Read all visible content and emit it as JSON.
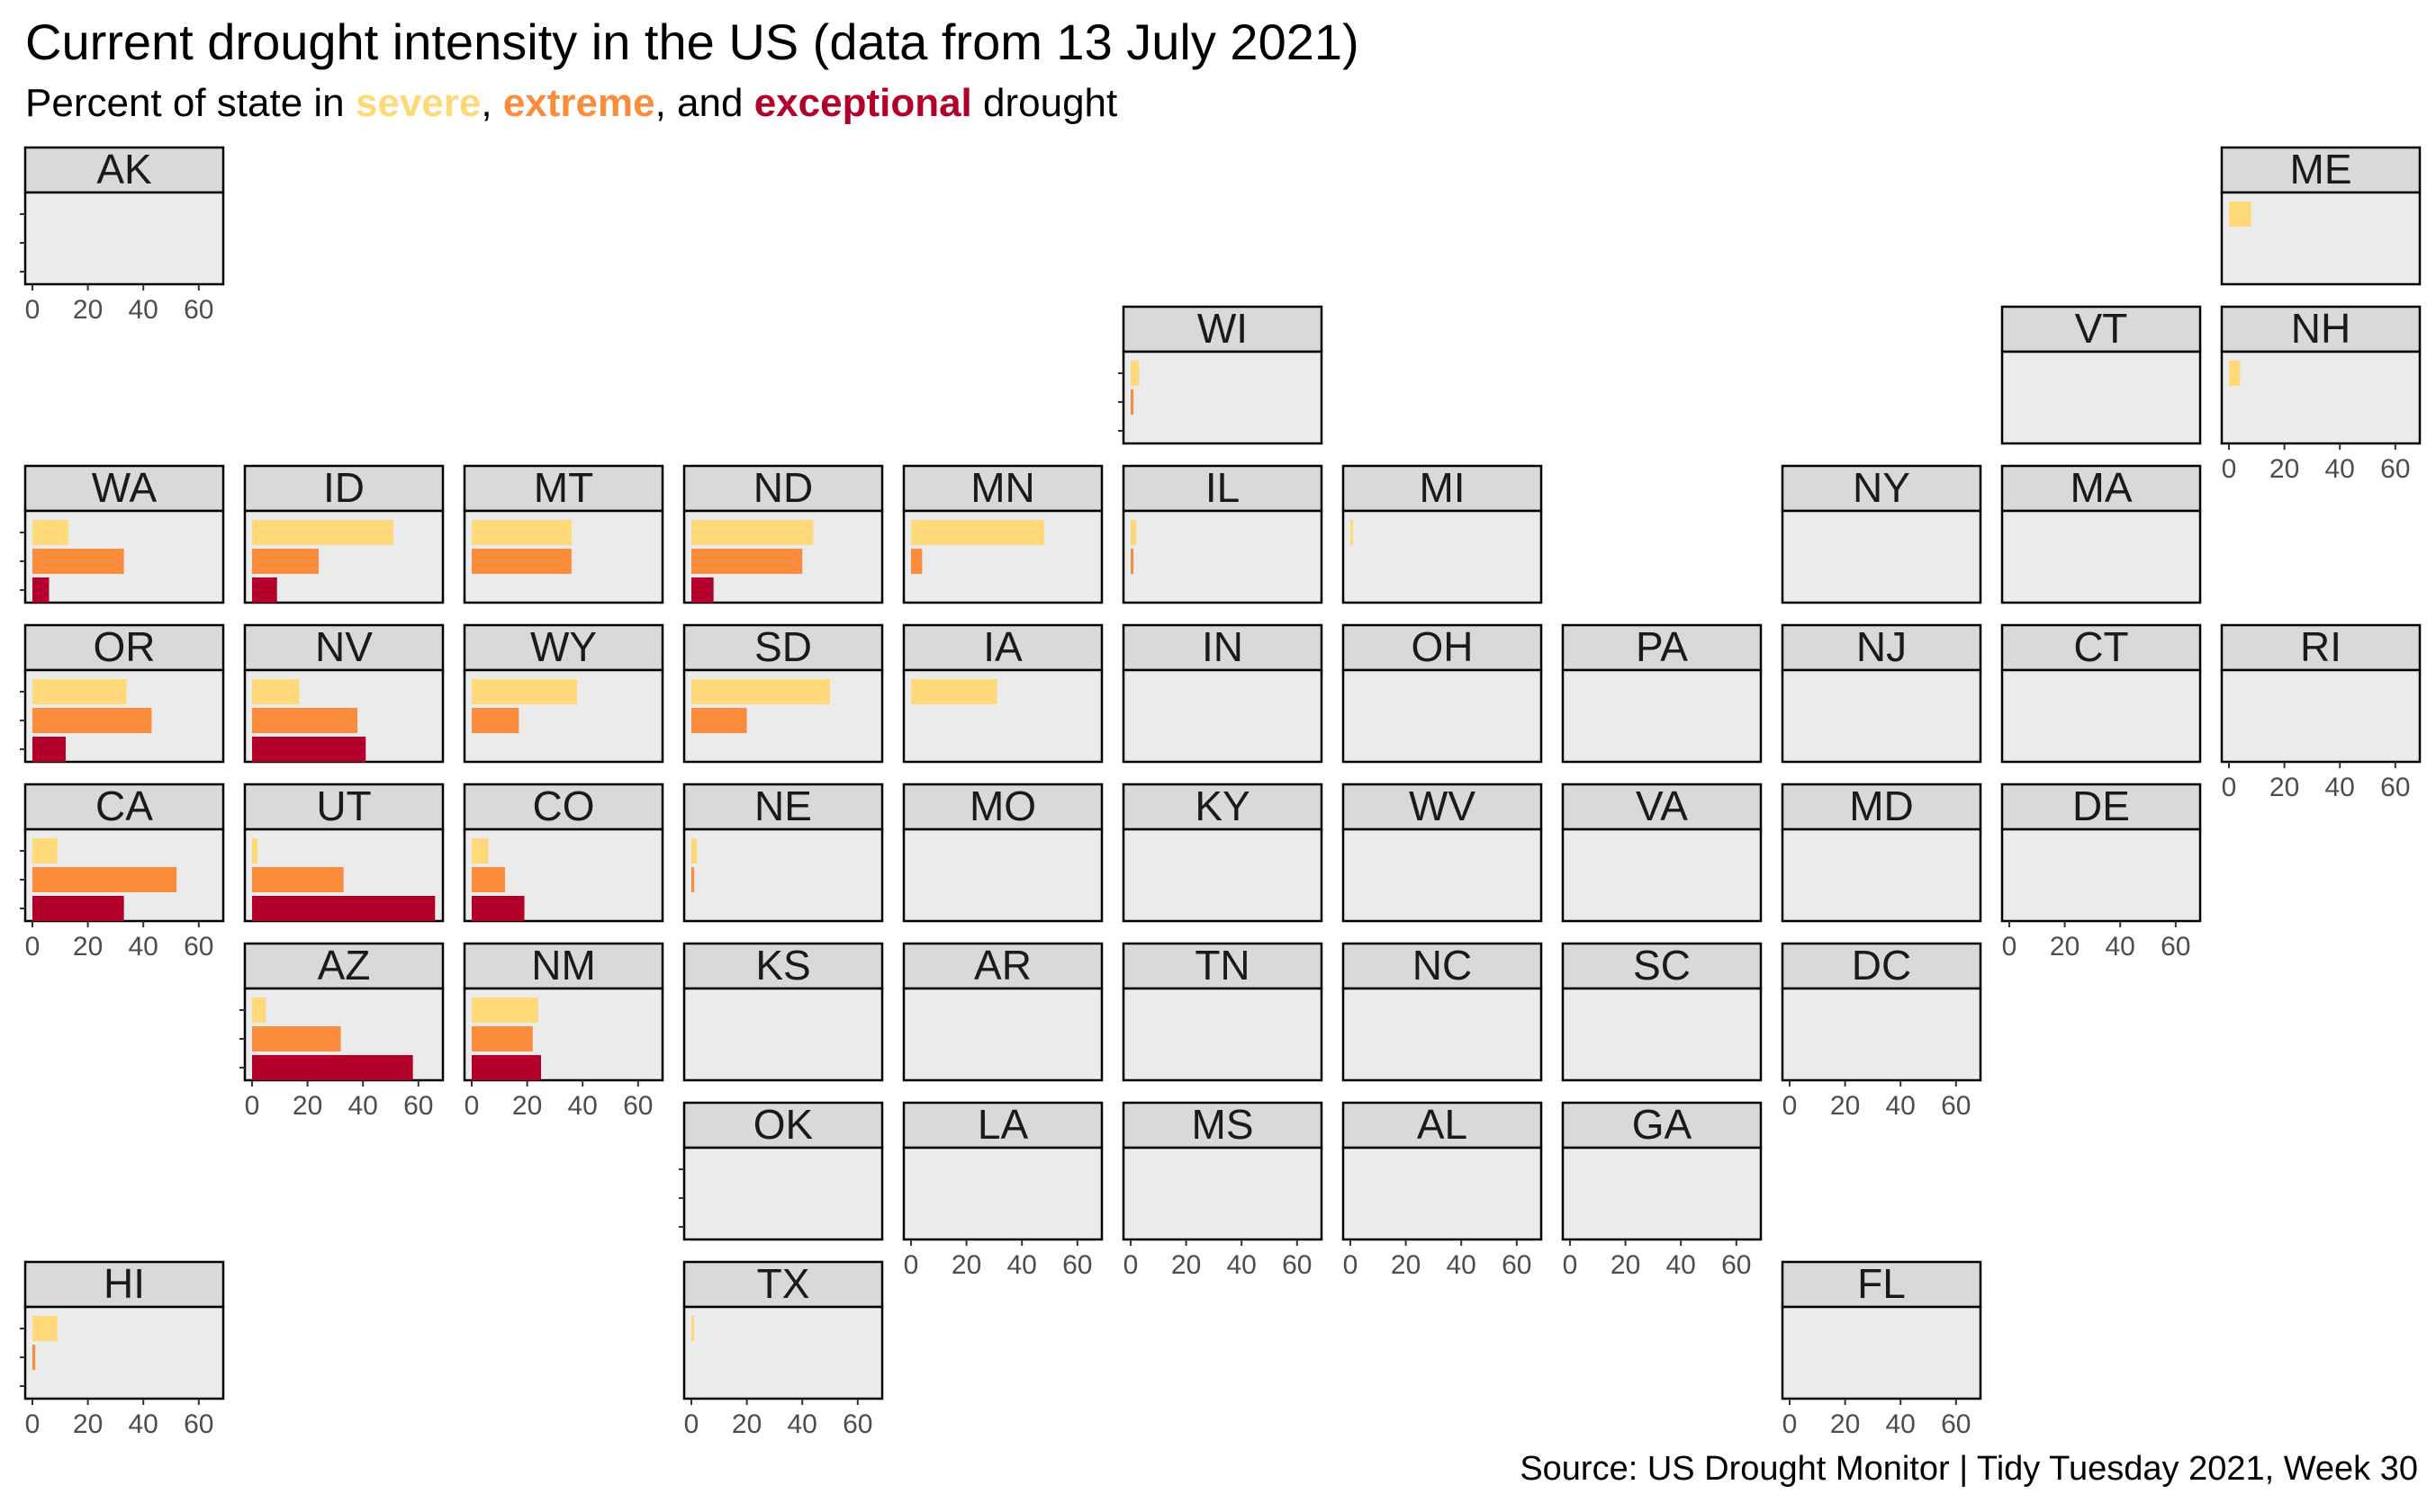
{
  "title": "Current drought intensity in the US (data from 13 July 2021)",
  "subtitle": {
    "prefix": "Percent of state in ",
    "severe": "severe",
    "sep1": ", ",
    "extreme": "extreme",
    "sep2": ", and ",
    "exceptional": "exceptional",
    "suffix": " drought"
  },
  "caption": "Source: US Drought Monitor | Tidy Tuesday 2021, Week 30",
  "colors": {
    "severe": "#FFD87A",
    "extreme": "#FB8C3C",
    "exceptional": "#B2002A",
    "panel": "#EBEBEB",
    "strip": "#D9D9D9"
  },
  "chart_data": {
    "type": "bar",
    "orientation": "horizontal",
    "layout": "geofacet-grid",
    "categories": [
      "severe",
      "extreme",
      "exceptional"
    ],
    "xlim": [
      0,
      70
    ],
    "xticks": [
      0,
      20,
      40,
      60
    ],
    "states": [
      {
        "name": "AK",
        "row": 1,
        "col": 1,
        "values": [
          0,
          0,
          0
        ]
      },
      {
        "name": "ME",
        "row": 1,
        "col": 11,
        "values": [
          8,
          0,
          0
        ]
      },
      {
        "name": "WI",
        "row": 2,
        "col": 6,
        "values": [
          3,
          1,
          0
        ]
      },
      {
        "name": "VT",
        "row": 2,
        "col": 10,
        "values": [
          0,
          0,
          0
        ]
      },
      {
        "name": "NH",
        "row": 2,
        "col": 11,
        "values": [
          4,
          0,
          0
        ]
      },
      {
        "name": "WA",
        "row": 3,
        "col": 1,
        "values": [
          13,
          33,
          6
        ]
      },
      {
        "name": "ID",
        "row": 3,
        "col": 2,
        "values": [
          51,
          24,
          9
        ]
      },
      {
        "name": "MT",
        "row": 3,
        "col": 3,
        "values": [
          36,
          36,
          0
        ]
      },
      {
        "name": "ND",
        "row": 3,
        "col": 4,
        "values": [
          44,
          40,
          8
        ]
      },
      {
        "name": "MN",
        "row": 3,
        "col": 5,
        "values": [
          48,
          4,
          0
        ]
      },
      {
        "name": "IL",
        "row": 3,
        "col": 6,
        "values": [
          2,
          1,
          0
        ]
      },
      {
        "name": "MI",
        "row": 3,
        "col": 7,
        "values": [
          1,
          0,
          0
        ]
      },
      {
        "name": "NY",
        "row": 3,
        "col": 9,
        "values": [
          0,
          0,
          0
        ]
      },
      {
        "name": "MA",
        "row": 3,
        "col": 10,
        "values": [
          0,
          0,
          0
        ]
      },
      {
        "name": "OR",
        "row": 4,
        "col": 1,
        "values": [
          34,
          43,
          12
        ]
      },
      {
        "name": "NV",
        "row": 4,
        "col": 2,
        "values": [
          17,
          38,
          41
        ]
      },
      {
        "name": "WY",
        "row": 4,
        "col": 3,
        "values": [
          38,
          17,
          0
        ]
      },
      {
        "name": "SD",
        "row": 4,
        "col": 4,
        "values": [
          50,
          20,
          0
        ]
      },
      {
        "name": "IA",
        "row": 4,
        "col": 5,
        "values": [
          31,
          0,
          0
        ]
      },
      {
        "name": "IN",
        "row": 4,
        "col": 6,
        "values": [
          0,
          0,
          0
        ]
      },
      {
        "name": "OH",
        "row": 4,
        "col": 7,
        "values": [
          0,
          0,
          0
        ]
      },
      {
        "name": "PA",
        "row": 4,
        "col": 8,
        "values": [
          0,
          0,
          0
        ]
      },
      {
        "name": "NJ",
        "row": 4,
        "col": 9,
        "values": [
          0,
          0,
          0
        ]
      },
      {
        "name": "CT",
        "row": 4,
        "col": 10,
        "values": [
          0,
          0,
          0
        ]
      },
      {
        "name": "RI",
        "row": 4,
        "col": 11,
        "values": [
          0,
          0,
          0
        ]
      },
      {
        "name": "CA",
        "row": 5,
        "col": 1,
        "values": [
          9,
          52,
          33
        ]
      },
      {
        "name": "UT",
        "row": 5,
        "col": 2,
        "values": [
          2,
          33,
          66
        ]
      },
      {
        "name": "CO",
        "row": 5,
        "col": 3,
        "values": [
          6,
          12,
          19
        ]
      },
      {
        "name": "NE",
        "row": 5,
        "col": 4,
        "values": [
          2,
          1,
          0
        ]
      },
      {
        "name": "MO",
        "row": 5,
        "col": 5,
        "values": [
          0,
          0,
          0
        ]
      },
      {
        "name": "KY",
        "row": 5,
        "col": 6,
        "values": [
          0,
          0,
          0
        ]
      },
      {
        "name": "WV",
        "row": 5,
        "col": 7,
        "values": [
          0,
          0,
          0
        ]
      },
      {
        "name": "VA",
        "row": 5,
        "col": 8,
        "values": [
          0,
          0,
          0
        ]
      },
      {
        "name": "MD",
        "row": 5,
        "col": 9,
        "values": [
          0,
          0,
          0
        ]
      },
      {
        "name": "DE",
        "row": 5,
        "col": 10,
        "values": [
          0,
          0,
          0
        ]
      },
      {
        "name": "AZ",
        "row": 6,
        "col": 2,
        "values": [
          5,
          32,
          58
        ]
      },
      {
        "name": "NM",
        "row": 6,
        "col": 3,
        "values": [
          24,
          22,
          25
        ]
      },
      {
        "name": "KS",
        "row": 6,
        "col": 4,
        "values": [
          0,
          0,
          0
        ]
      },
      {
        "name": "AR",
        "row": 6,
        "col": 5,
        "values": [
          0,
          0,
          0
        ]
      },
      {
        "name": "TN",
        "row": 6,
        "col": 6,
        "values": [
          0,
          0,
          0
        ]
      },
      {
        "name": "NC",
        "row": 6,
        "col": 7,
        "values": [
          0,
          0,
          0
        ]
      },
      {
        "name": "SC",
        "row": 6,
        "col": 8,
        "values": [
          0,
          0,
          0
        ]
      },
      {
        "name": "DC",
        "row": 6,
        "col": 9,
        "values": [
          0,
          0,
          0
        ]
      },
      {
        "name": "OK",
        "row": 7,
        "col": 4,
        "values": [
          0,
          0,
          0
        ]
      },
      {
        "name": "LA",
        "row": 7,
        "col": 5,
        "values": [
          0,
          0,
          0
        ]
      },
      {
        "name": "MS",
        "row": 7,
        "col": 6,
        "values": [
          0,
          0,
          0
        ]
      },
      {
        "name": "AL",
        "row": 7,
        "col": 7,
        "values": [
          0,
          0,
          0
        ]
      },
      {
        "name": "GA",
        "row": 7,
        "col": 8,
        "values": [
          0,
          0,
          0
        ]
      },
      {
        "name": "HI",
        "row": 8,
        "col": 1,
        "values": [
          9,
          1,
          0
        ]
      },
      {
        "name": "TX",
        "row": 8,
        "col": 4,
        "values": [
          1,
          0,
          0
        ]
      },
      {
        "name": "FL",
        "row": 8,
        "col": 9,
        "values": [
          0,
          0,
          0
        ]
      }
    ]
  }
}
